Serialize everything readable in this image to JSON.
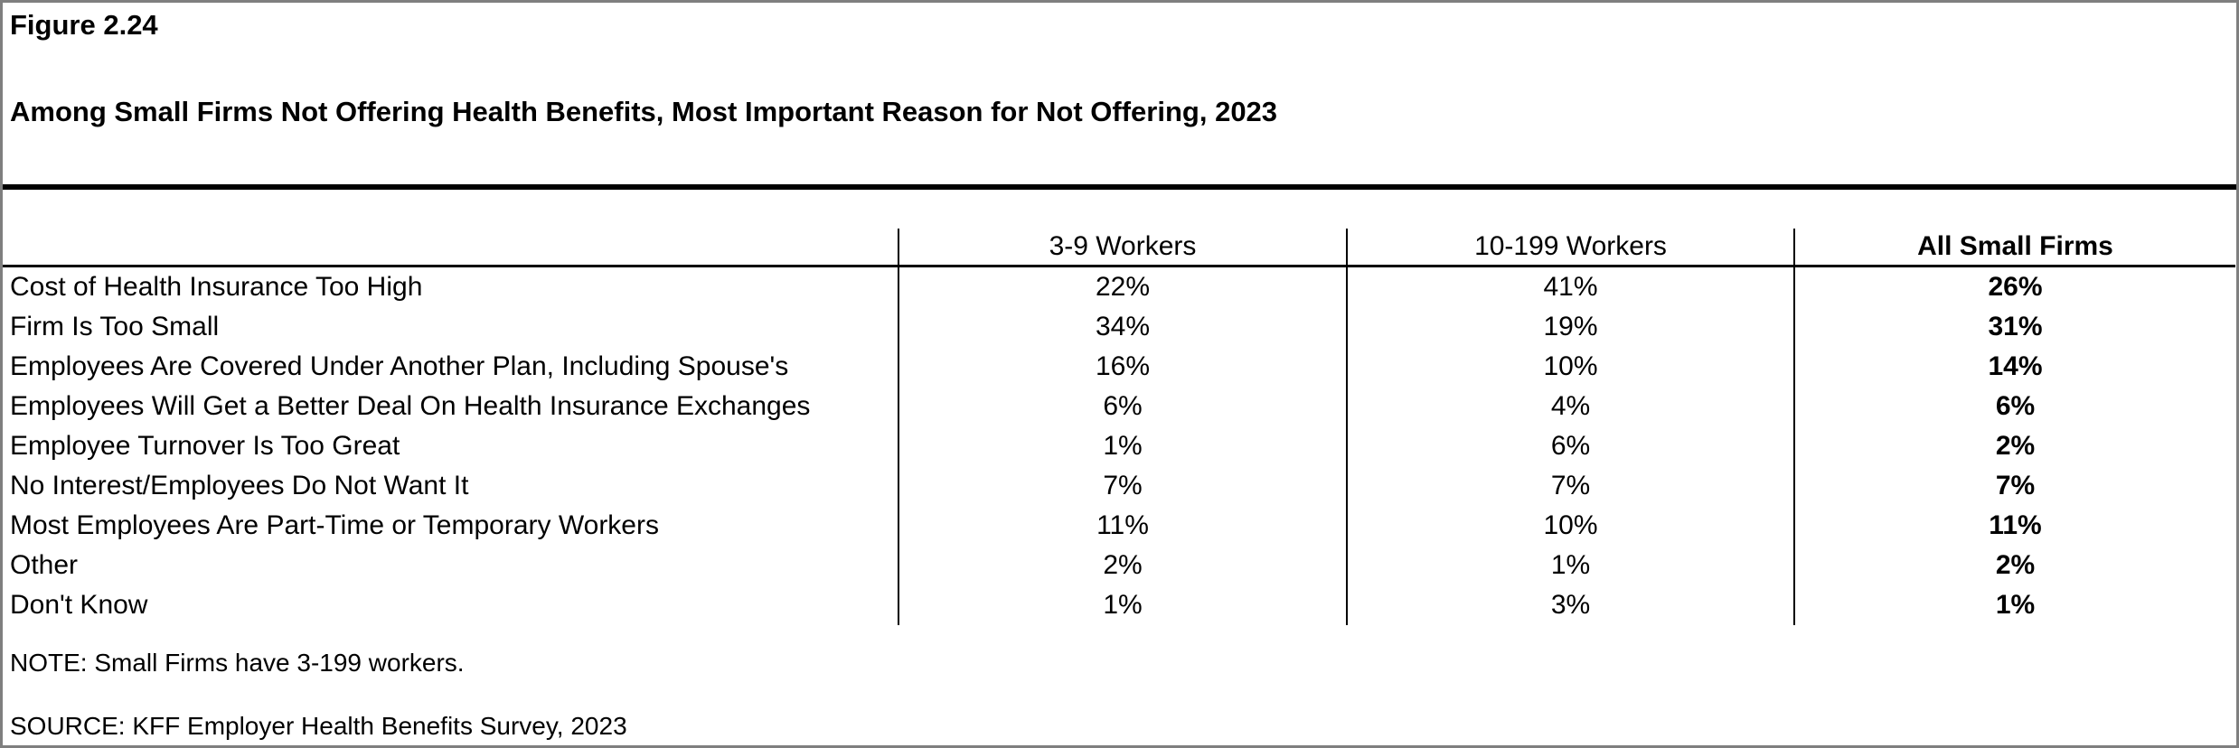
{
  "figure": {
    "label": "Figure 2.24",
    "title": "Among Small Firms Not Offering Health Benefits, Most Important Reason for Not Offering, 2023"
  },
  "table": {
    "columns": [
      "3-9 Workers",
      "10-199 Workers",
      "All Small Firms"
    ],
    "rows": [
      {
        "label": "Cost of Health Insurance Too High",
        "values": [
          "22%",
          "41%",
          "26%"
        ]
      },
      {
        "label": "Firm Is Too Small",
        "values": [
          "34%",
          "19%",
          "31%"
        ]
      },
      {
        "label": "Employees Are Covered Under Another Plan, Including Spouse's",
        "values": [
          "16%",
          "10%",
          "14%"
        ]
      },
      {
        "label": "Employees Will Get a Better Deal On Health Insurance Exchanges",
        "values": [
          "6%",
          "4%",
          "6%"
        ]
      },
      {
        "label": "Employee Turnover Is Too Great",
        "values": [
          "1%",
          "6%",
          "2%"
        ]
      },
      {
        "label": "No Interest/Employees Do Not Want It",
        "values": [
          "7%",
          "7%",
          "7%"
        ]
      },
      {
        "label": "Most Employees Are Part-Time or Temporary Workers",
        "values": [
          "11%",
          "10%",
          "11%"
        ]
      },
      {
        "label": "Other",
        "values": [
          "2%",
          "1%",
          "2%"
        ]
      },
      {
        "label": "Don't Know",
        "values": [
          "1%",
          "3%",
          "1%"
        ]
      }
    ]
  },
  "notes": {
    "note": "NOTE: Small Firms have 3-199 workers.",
    "source": "SOURCE: KFF Employer Health Benefits Survey, 2023"
  },
  "colors": {
    "text": "#000000",
    "rule": "#000000",
    "page_border": "#7f7f7f"
  }
}
